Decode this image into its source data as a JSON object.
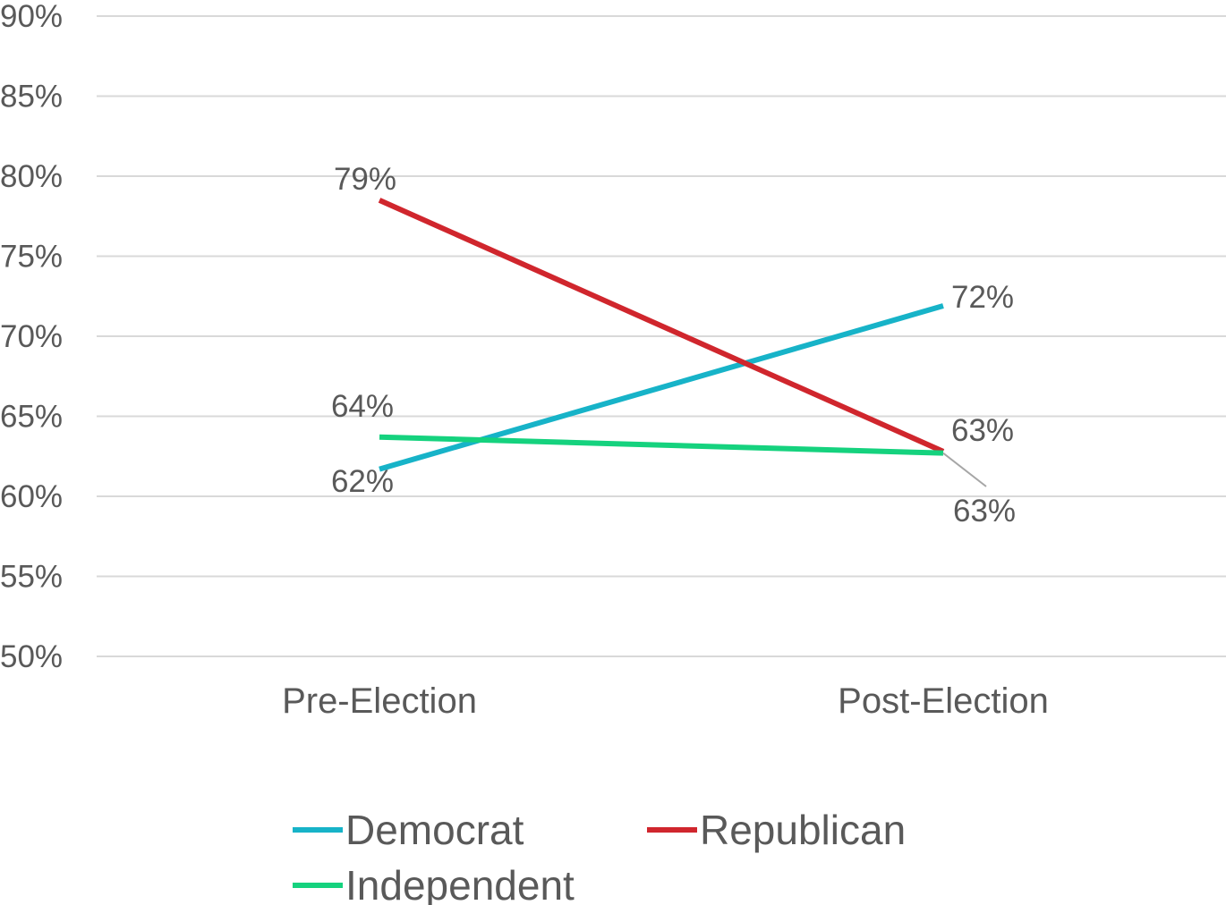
{
  "chart_data": {
    "type": "line",
    "categories": [
      "Pre-Election",
      "Post-Election"
    ],
    "series": [
      {
        "name": "Democrat",
        "values": [
          61.7,
          71.9
        ],
        "labels": [
          "62%",
          "72%"
        ],
        "color": "#17b3c8"
      },
      {
        "name": "Republican",
        "values": [
          78.5,
          62.8
        ],
        "labels": [
          "79%",
          "63%"
        ],
        "color": "#d0262d"
      },
      {
        "name": "Independent",
        "values": [
          63.7,
          62.7
        ],
        "labels": [
          "64%",
          "63%"
        ],
        "color": "#15d27e"
      }
    ],
    "ylim": [
      50,
      90
    ],
    "yticks": [
      50,
      55,
      60,
      65,
      70,
      75,
      80,
      85,
      90
    ],
    "ytick_labels": [
      "50%",
      "55%",
      "60%",
      "65%",
      "70%",
      "75%",
      "80%",
      "85%",
      "90%"
    ],
    "grid": true,
    "legend_position": "bottom",
    "title": "",
    "xlabel": "",
    "ylabel": ""
  }
}
